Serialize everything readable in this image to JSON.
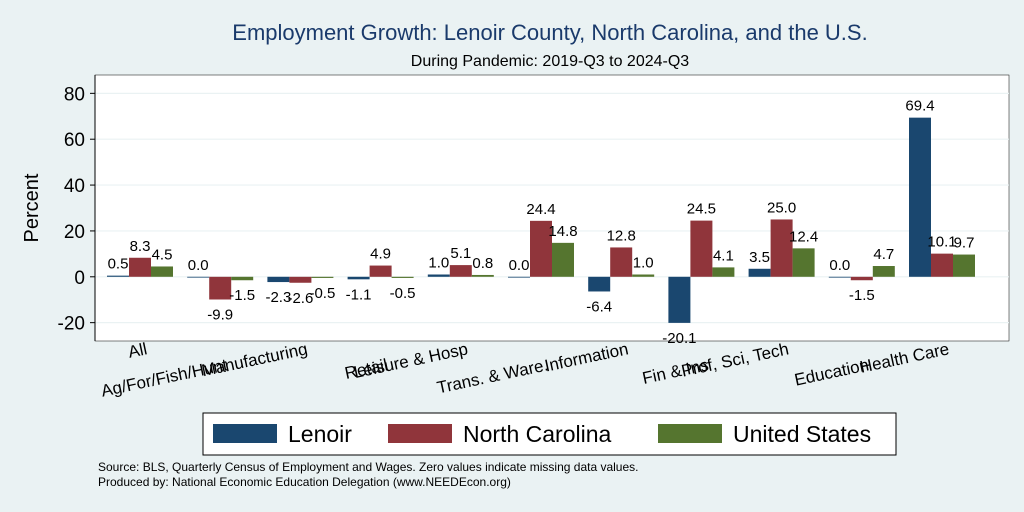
{
  "chart_data": {
    "type": "bar",
    "title": "Employment Growth: Lenoir County, North Carolina, and the U.S.",
    "subtitle": "During Pandemic: 2019-Q3 to 2024-Q3",
    "xlabel": "",
    "ylabel": "Percent",
    "ylim": [
      -28,
      88
    ],
    "yticks": [
      -20,
      0,
      20,
      40,
      60,
      80
    ],
    "ytick_labels": [
      "-20",
      "0",
      "20",
      "40",
      "60",
      "80"
    ],
    "grid": true,
    "legend_position": "bottom",
    "categories": [
      "All",
      "Ag/For/Fish/Hunt",
      "Manufacturing",
      "Retail",
      "Leisure & Hosp",
      "Trans. & Ware.",
      "Information",
      "Fin & Ins",
      "Prof, Sci, Tech",
      "Education",
      "Health Care"
    ],
    "series": [
      {
        "name": "Lenoir",
        "color": "#1a476f",
        "values": [
          0.5,
          0.0,
          -2.3,
          -1.1,
          1.0,
          0.0,
          -6.4,
          -20.1,
          3.5,
          0.0,
          69.4
        ],
        "labels": [
          "0.5",
          "0.0",
          "-2.3",
          "-1.1",
          "1.0",
          "0.0",
          "-6.4",
          "-20.1",
          "3.5",
          "0.0",
          "69.4"
        ]
      },
      {
        "name": "North Carolina",
        "color": "#90353b",
        "values": [
          8.3,
          -9.9,
          -2.6,
          4.9,
          5.1,
          24.4,
          12.8,
          24.5,
          25.0,
          -1.5,
          10.1
        ],
        "labels": [
          "8.3",
          "-9.9",
          "-2.6",
          "4.9",
          "5.1",
          "24.4",
          "12.8",
          "24.5",
          "25.0",
          "-1.5",
          "10.1"
        ]
      },
      {
        "name": "United States",
        "color": "#55752f",
        "values": [
          4.5,
          -1.5,
          -0.5,
          -0.5,
          0.8,
          14.8,
          1.0,
          4.1,
          12.4,
          4.7,
          9.7
        ],
        "labels": [
          "4.5",
          "-1.5",
          "-0.5",
          "-0.5",
          "0.8",
          "14.8",
          "1.0",
          "4.1",
          "12.4",
          "4.7",
          "9.7"
        ]
      }
    ]
  },
  "footer": {
    "source": "Source: BLS, Quarterly Census of Employment and Wages. Zero values indicate missing data values.",
    "produced": "Produced by: National Economic Education Delegation (www.NEEDEcon.org)"
  }
}
